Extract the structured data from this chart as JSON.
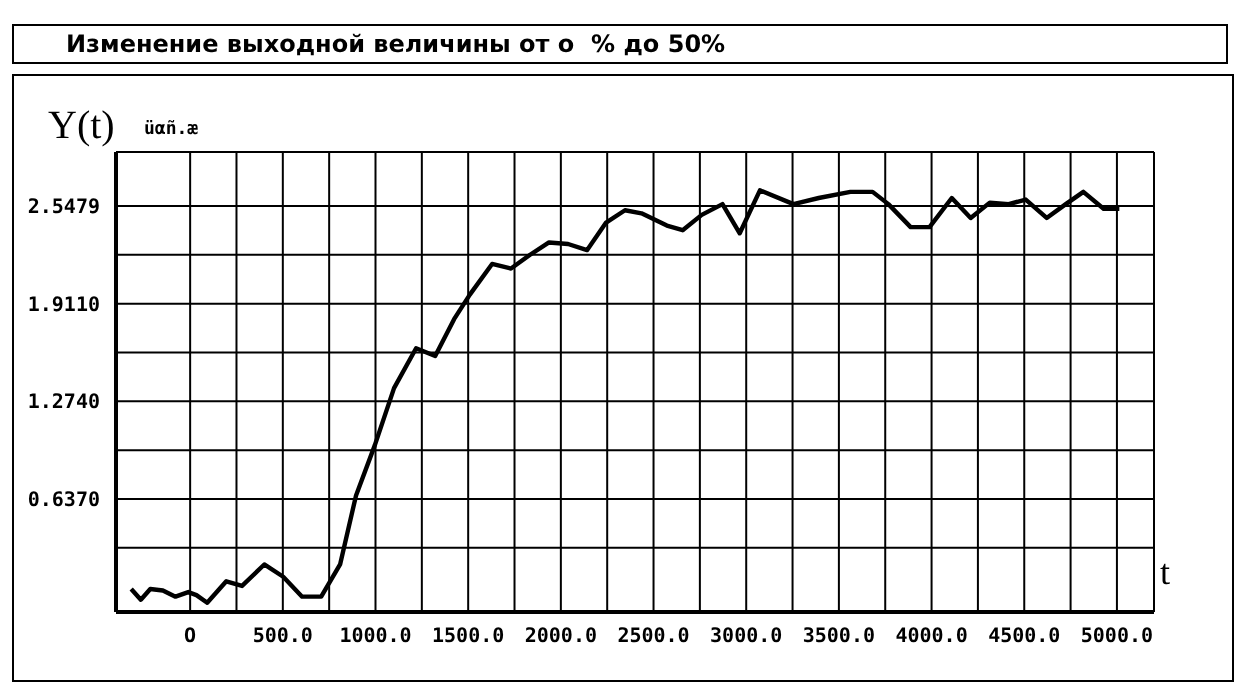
{
  "chart_data": {
    "type": "line",
    "title": "Изменение выходной величины от о  % до 50%",
    "xlabel": "t",
    "ylabel": "Y(t)",
    "annotations": [
      "üαñ.æ"
    ],
    "xlim": [
      -400,
      5200
    ],
    "ylim": [
      -0.1,
      2.9
    ],
    "grid": true,
    "xticks": [
      {
        "value": 0,
        "label": "O"
      },
      {
        "value": 250,
        "label": null
      },
      {
        "value": 500,
        "label": "500.0"
      },
      {
        "value": 750,
        "label": null
      },
      {
        "value": 1000,
        "label": "1000.0"
      },
      {
        "value": 1250,
        "label": null
      },
      {
        "value": 1500,
        "label": "1500.0"
      },
      {
        "value": 1750,
        "label": null
      },
      {
        "value": 2000,
        "label": "2000.0"
      },
      {
        "value": 2250,
        "label": null
      },
      {
        "value": 2500,
        "label": "2500.0"
      },
      {
        "value": 2750,
        "label": null
      },
      {
        "value": 3000,
        "label": "3000.0"
      },
      {
        "value": 3250,
        "label": null
      },
      {
        "value": 3500,
        "label": "3500.0"
      },
      {
        "value": 3750,
        "label": null
      },
      {
        "value": 4000,
        "label": "4000.0"
      },
      {
        "value": 4250,
        "label": null
      },
      {
        "value": 4500,
        "label": "4500.0"
      },
      {
        "value": 4750,
        "label": null
      },
      {
        "value": 5000,
        "label": "5000.0"
      }
    ],
    "yticks": [
      {
        "value": 0.3185,
        "label": null
      },
      {
        "value": 0.637,
        "label": "0.6370"
      },
      {
        "value": 0.9555,
        "label": null
      },
      {
        "value": 1.274,
        "label": "1.2740"
      },
      {
        "value": 1.5925,
        "label": null
      },
      {
        "value": 1.911,
        "label": "1.9110"
      },
      {
        "value": 2.2295,
        "label": null
      },
      {
        "value": 2.5479,
        "label": "2.5479"
      }
    ],
    "series": [
      {
        "color": "#000000",
        "x": [
          -318,
          -266,
          -215,
          -147,
          -79,
          -10,
          34,
          92,
          195,
          280,
          400,
          502,
          604,
          707,
          809,
          895,
          997,
          1100,
          1219,
          1322,
          1424,
          1509,
          1629,
          1731,
          1834,
          1936,
          2039,
          2141,
          2244,
          2346,
          2435,
          2572,
          2657,
          2760,
          2872,
          2965,
          3074,
          3255,
          3391,
          3562,
          3682,
          3767,
          3887,
          3989,
          4109,
          4211,
          4314,
          4416,
          4508,
          4621,
          4724,
          4819,
          4928,
          5013
        ],
        "values": [
          0.05,
          -0.02,
          0.05,
          0.04,
          0,
          0.03,
          0.01,
          -0.04,
          0.1,
          0.07,
          0.21,
          0.13,
          0,
          0,
          0.21,
          0.66,
          0.99,
          1.36,
          1.62,
          1.57,
          1.81,
          1.97,
          2.17,
          2.14,
          2.23,
          2.31,
          2.3,
          2.26,
          2.44,
          2.52,
          2.5,
          2.42,
          2.39,
          2.49,
          2.56,
          2.37,
          2.65,
          2.56,
          2.6,
          2.64,
          2.64,
          2.56,
          2.41,
          2.41,
          2.6,
          2.47,
          2.57,
          2.56,
          2.59,
          2.47,
          2.56,
          2.64,
          2.53,
          2.53
        ]
      }
    ]
  }
}
